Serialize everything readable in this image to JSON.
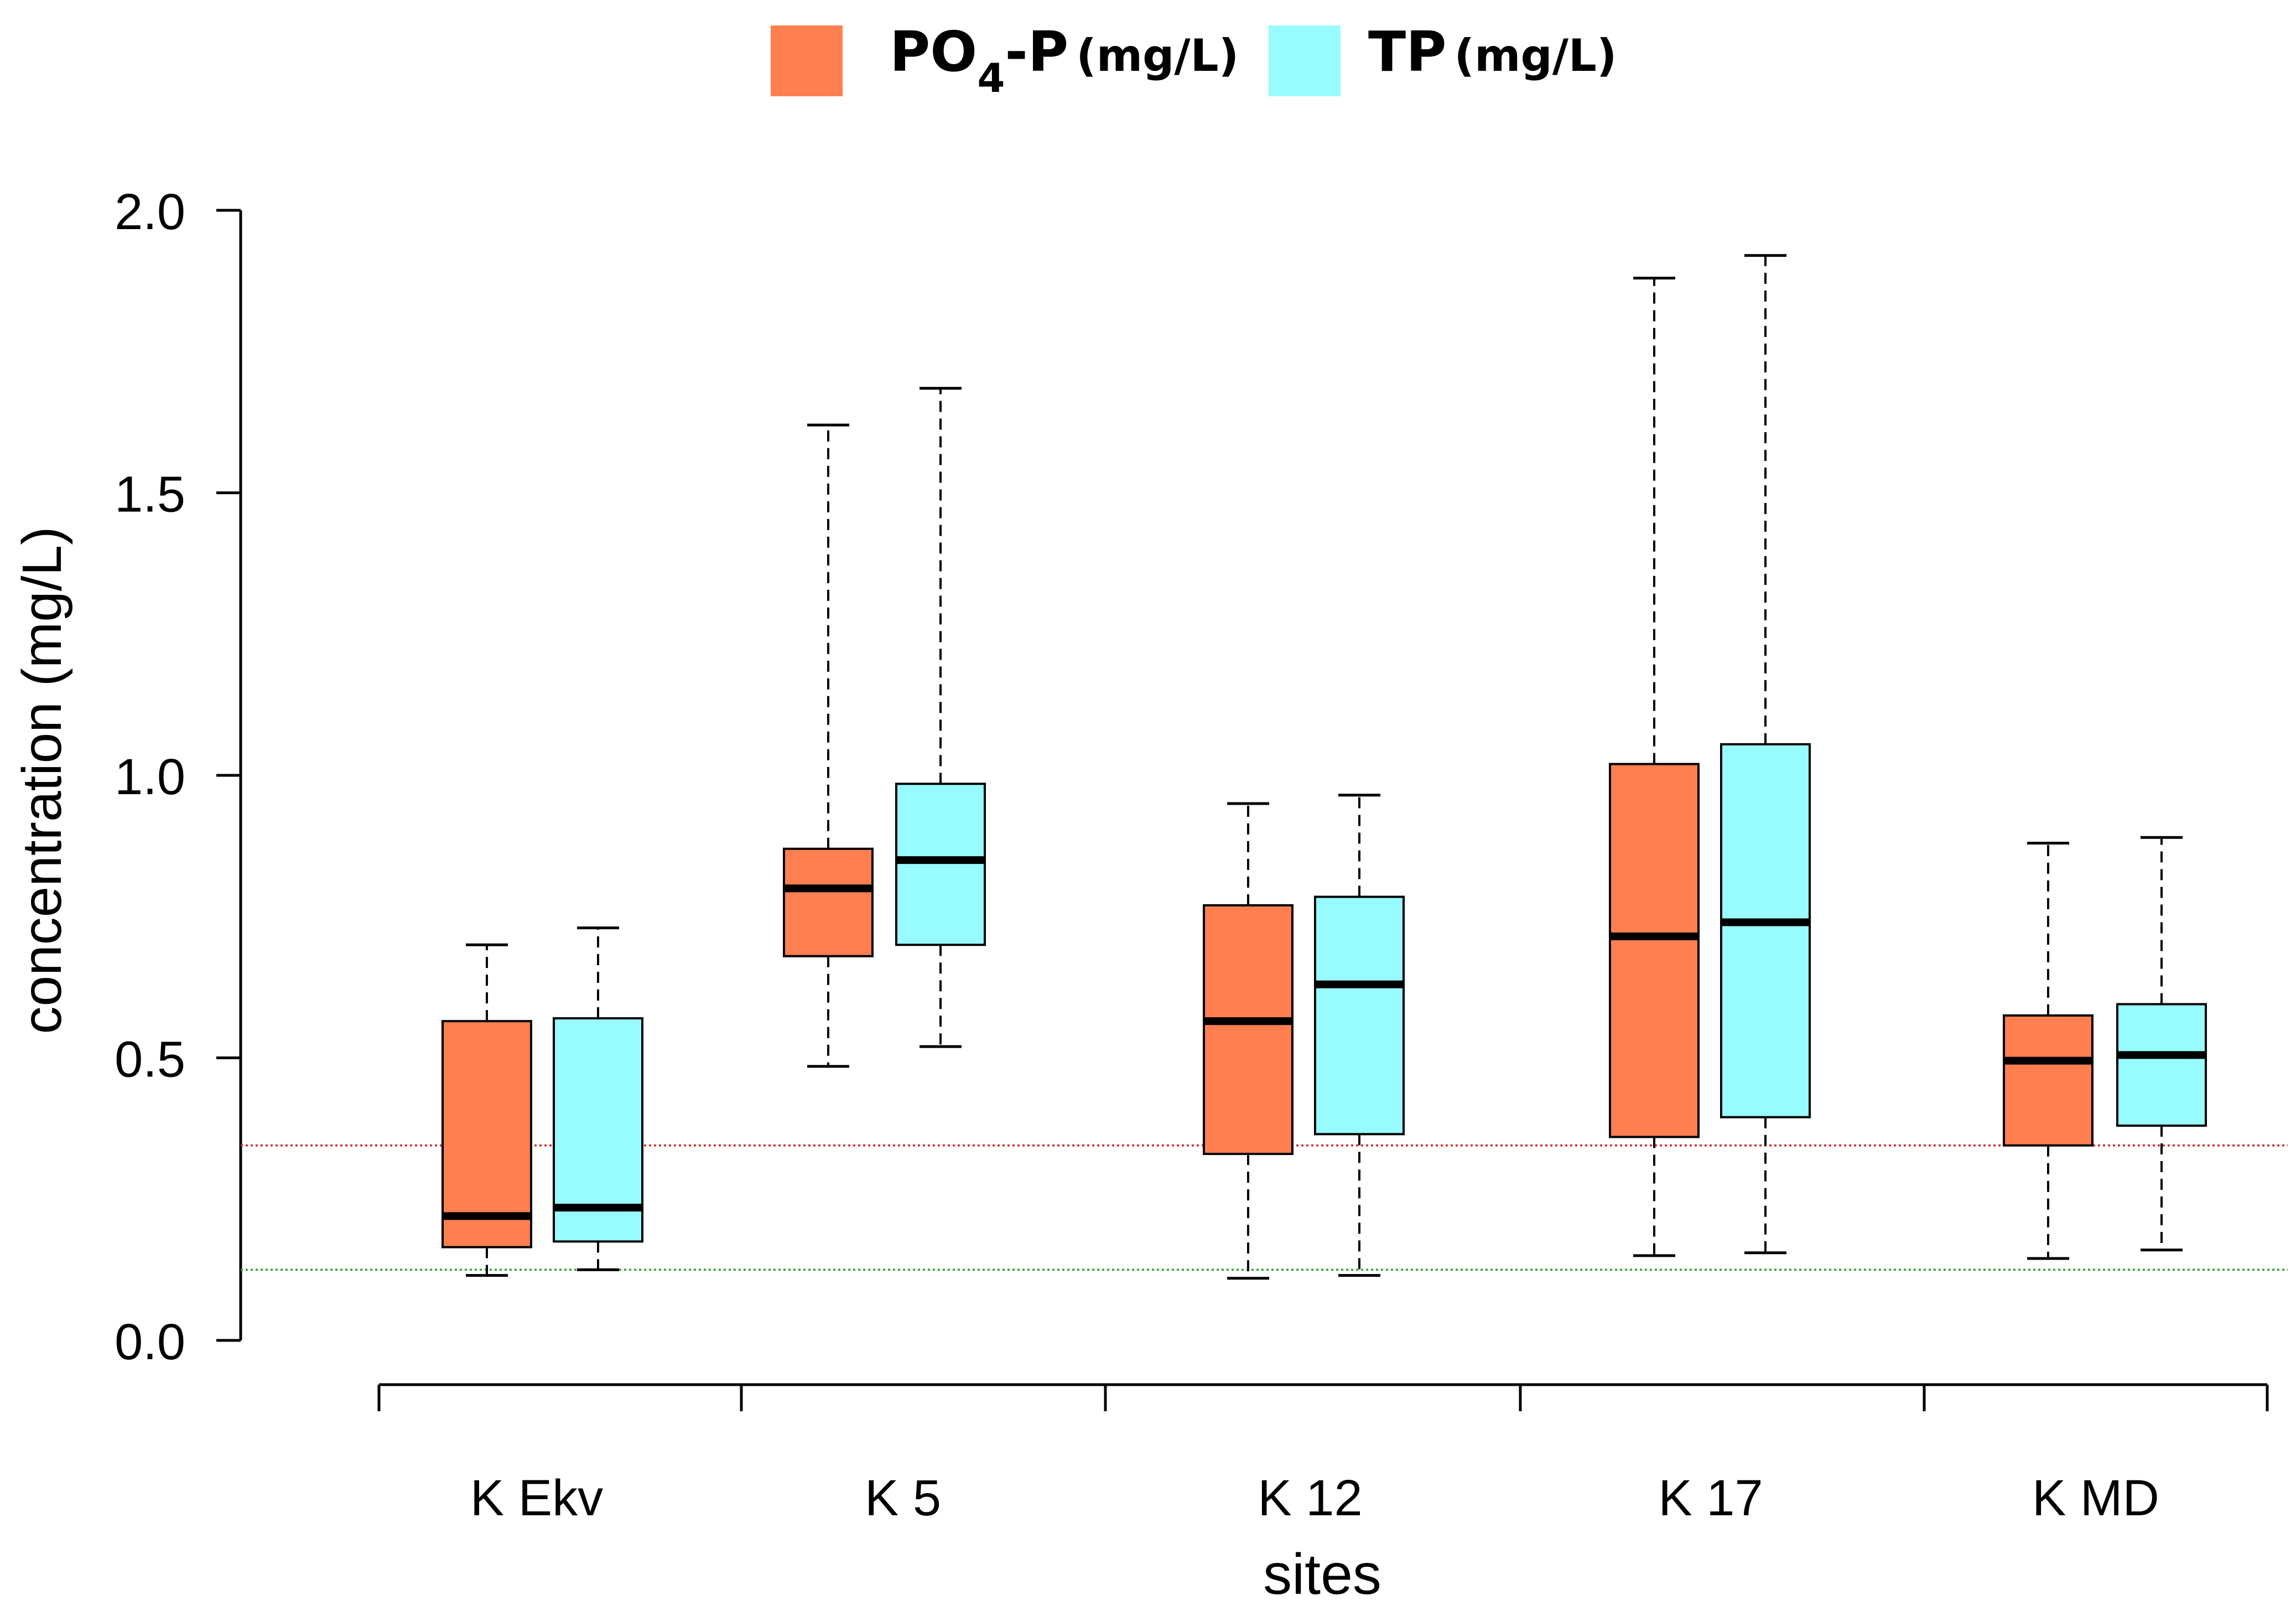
{
  "chart_data": {
    "type": "boxplot",
    "title": "",
    "xlabel": "sites",
    "ylabel": "concentration (mg/L)",
    "ylim": [
      0.0,
      2.0
    ],
    "yticks": [
      "0.0",
      "0.5",
      "1.0",
      "1.5",
      "2.0"
    ],
    "ytick_values": [
      0.0,
      0.5,
      1.0,
      1.5,
      2.0
    ],
    "categories": [
      "K Ekv",
      "K 5",
      "K 12",
      "K 17",
      "K MD"
    ],
    "legend": {
      "placement": "top",
      "entries": [
        {
          "main": "PO",
          "sub": "4",
          "suffix": "-P",
          "unit": "(mg/L)",
          "color": "#FF7F50"
        },
        {
          "main": "TP",
          "sub": "",
          "suffix": "",
          "unit": "(mg/L)",
          "color": "#98FBFF"
        }
      ]
    },
    "series": [
      {
        "name": "PO4-P (mg/L)",
        "color": "#FF7F50",
        "boxes": [
          {
            "whisker_low": 0.115,
            "q1": 0.165,
            "median": 0.22,
            "q3": 0.565,
            "whisker_high": 0.7
          },
          {
            "whisker_low": 0.485,
            "q1": 0.68,
            "median": 0.8,
            "q3": 0.87,
            "whisker_high": 1.62
          },
          {
            "whisker_low": 0.11,
            "q1": 0.33,
            "median": 0.565,
            "q3": 0.77,
            "whisker_high": 0.95
          },
          {
            "whisker_low": 0.15,
            "q1": 0.36,
            "median": 0.715,
            "q3": 1.02,
            "whisker_high": 1.88
          },
          {
            "whisker_low": 0.145,
            "q1": 0.345,
            "median": 0.495,
            "q3": 0.575,
            "whisker_high": 0.88
          }
        ]
      },
      {
        "name": "TP (mg/L)",
        "color": "#98FBFF",
        "boxes": [
          {
            "whisker_low": 0.125,
            "q1": 0.175,
            "median": 0.235,
            "q3": 0.57,
            "whisker_high": 0.73
          },
          {
            "whisker_low": 0.52,
            "q1": 0.7,
            "median": 0.85,
            "q3": 0.985,
            "whisker_high": 1.685
          },
          {
            "whisker_low": 0.115,
            "q1": 0.365,
            "median": 0.63,
            "q3": 0.785,
            "whisker_high": 0.965
          },
          {
            "whisker_low": 0.155,
            "q1": 0.395,
            "median": 0.74,
            "q3": 1.055,
            "whisker_high": 1.92
          },
          {
            "whisker_low": 0.16,
            "q1": 0.38,
            "median": 0.505,
            "q3": 0.595,
            "whisker_high": 0.89
          }
        ]
      }
    ],
    "reference_lines": [
      {
        "y": 0.345,
        "color": "#D62728",
        "style": "dotted"
      },
      {
        "y": 0.125,
        "color": "#2CA02C",
        "style": "dotted"
      }
    ],
    "grid": false
  }
}
